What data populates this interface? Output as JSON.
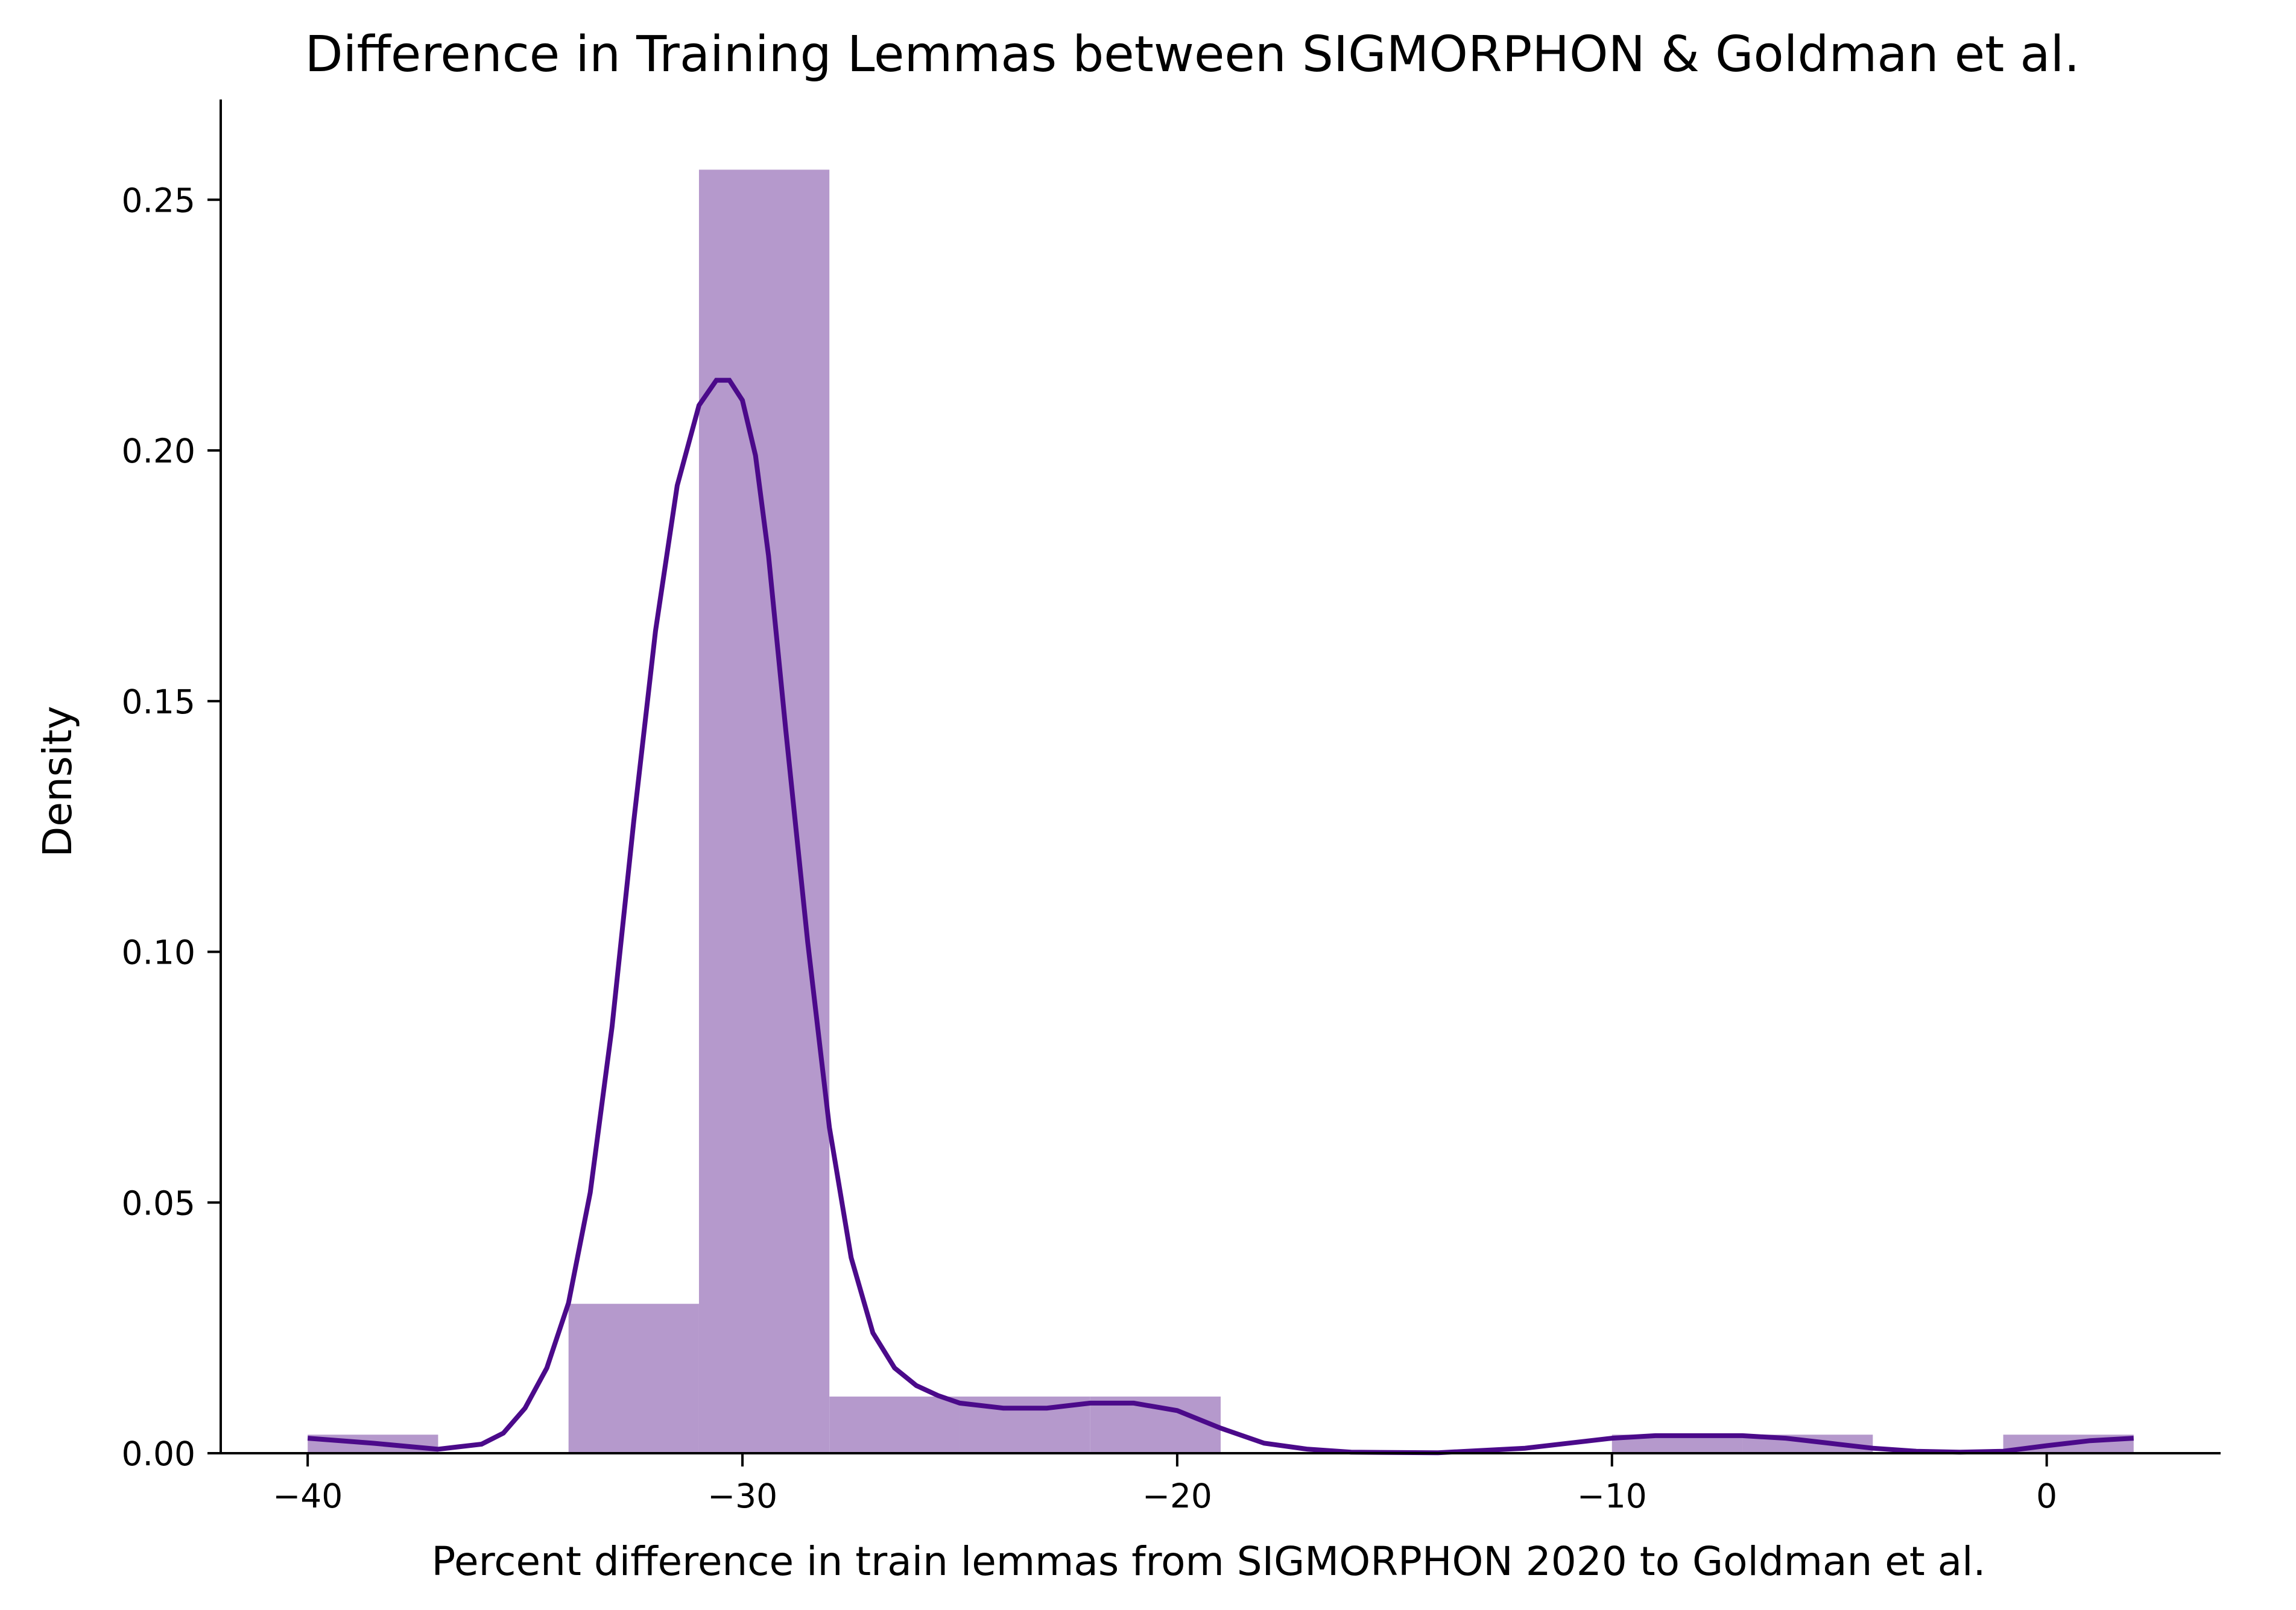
{
  "chart_data": {
    "type": "histogram",
    "title": "Difference in Training Lemmas between SIGMORPHON & Goldman et al.",
    "xlabel": "Percent difference in train lemmas from SIGMORPHON 2020 to Goldman et al.",
    "ylabel": "Density",
    "xlim": [
      -42,
      4
    ],
    "ylim": [
      0,
      0.27
    ],
    "xticks": [
      -40,
      -30,
      -20,
      -10,
      0
    ],
    "xtick_labels": [
      "−40",
      "−30",
      "−20",
      "−10",
      "0"
    ],
    "yticks": [
      0,
      0.05,
      0.1,
      0.15,
      0.2,
      0.25
    ],
    "ytick_labels": [
      "0.00",
      "0.05",
      "0.10",
      "0.15",
      "0.20",
      "0.25"
    ],
    "bins": [
      {
        "x0": -40,
        "x1": -37,
        "density": 0.0037
      },
      {
        "x0": -37,
        "x1": -34,
        "density": 0.0
      },
      {
        "x0": -34,
        "x1": -31,
        "density": 0.0298
      },
      {
        "x0": -31,
        "x1": -28,
        "density": 0.256
      },
      {
        "x0": -28,
        "x1": -25,
        "density": 0.0113
      },
      {
        "x0": -25,
        "x1": -22,
        "density": 0.0113
      },
      {
        "x0": -22,
        "x1": -19,
        "density": 0.0113
      },
      {
        "x0": -19,
        "x1": -16,
        "density": 0.0
      },
      {
        "x0": -16,
        "x1": -13,
        "density": 0.0
      },
      {
        "x0": -13,
        "x1": -10,
        "density": 0.0
      },
      {
        "x0": -10,
        "x1": -7,
        "density": 0.0037
      },
      {
        "x0": -7,
        "x1": -4,
        "density": 0.0037
      },
      {
        "x0": -4,
        "x1": -1,
        "density": 0.0
      },
      {
        "x0": -1,
        "x1": 2,
        "density": 0.0037
      }
    ],
    "kde": {
      "x": [
        -40,
        -38.5,
        -37,
        -36,
        -35.5,
        -35,
        -34.5,
        -34,
        -33.5,
        -33,
        -32.5,
        -32,
        -31.5,
        -31,
        -30.6,
        -30.3,
        -30,
        -29.7,
        -29.4,
        -29,
        -28.5,
        -28,
        -27.5,
        -27,
        -26.5,
        -26,
        -25.5,
        -25,
        -24,
        -23,
        -22,
        -21,
        -20,
        -19,
        -18,
        -17,
        -16,
        -14,
        -12,
        -10,
        -9,
        -8,
        -7,
        -6,
        -5,
        -4,
        -3,
        -2,
        -1,
        0,
        1,
        2
      ],
      "y": [
        0.003,
        0.002,
        0.0008,
        0.0018,
        0.004,
        0.009,
        0.017,
        0.03,
        0.052,
        0.085,
        0.126,
        0.164,
        0.193,
        0.209,
        0.214,
        0.214,
        0.21,
        0.199,
        0.179,
        0.144,
        0.102,
        0.065,
        0.039,
        0.024,
        0.017,
        0.0135,
        0.0115,
        0.01,
        0.009,
        0.009,
        0.01,
        0.01,
        0.0085,
        0.005,
        0.002,
        0.0008,
        0.0002,
        0.0001,
        0.001,
        0.003,
        0.0035,
        0.0035,
        0.0035,
        0.003,
        0.002,
        0.001,
        0.0004,
        0.0002,
        0.0004,
        0.0015,
        0.0025,
        0.003
      ]
    },
    "bar_color": "#b599cc",
    "line_color": "#4b0a8a",
    "grid": false
  }
}
